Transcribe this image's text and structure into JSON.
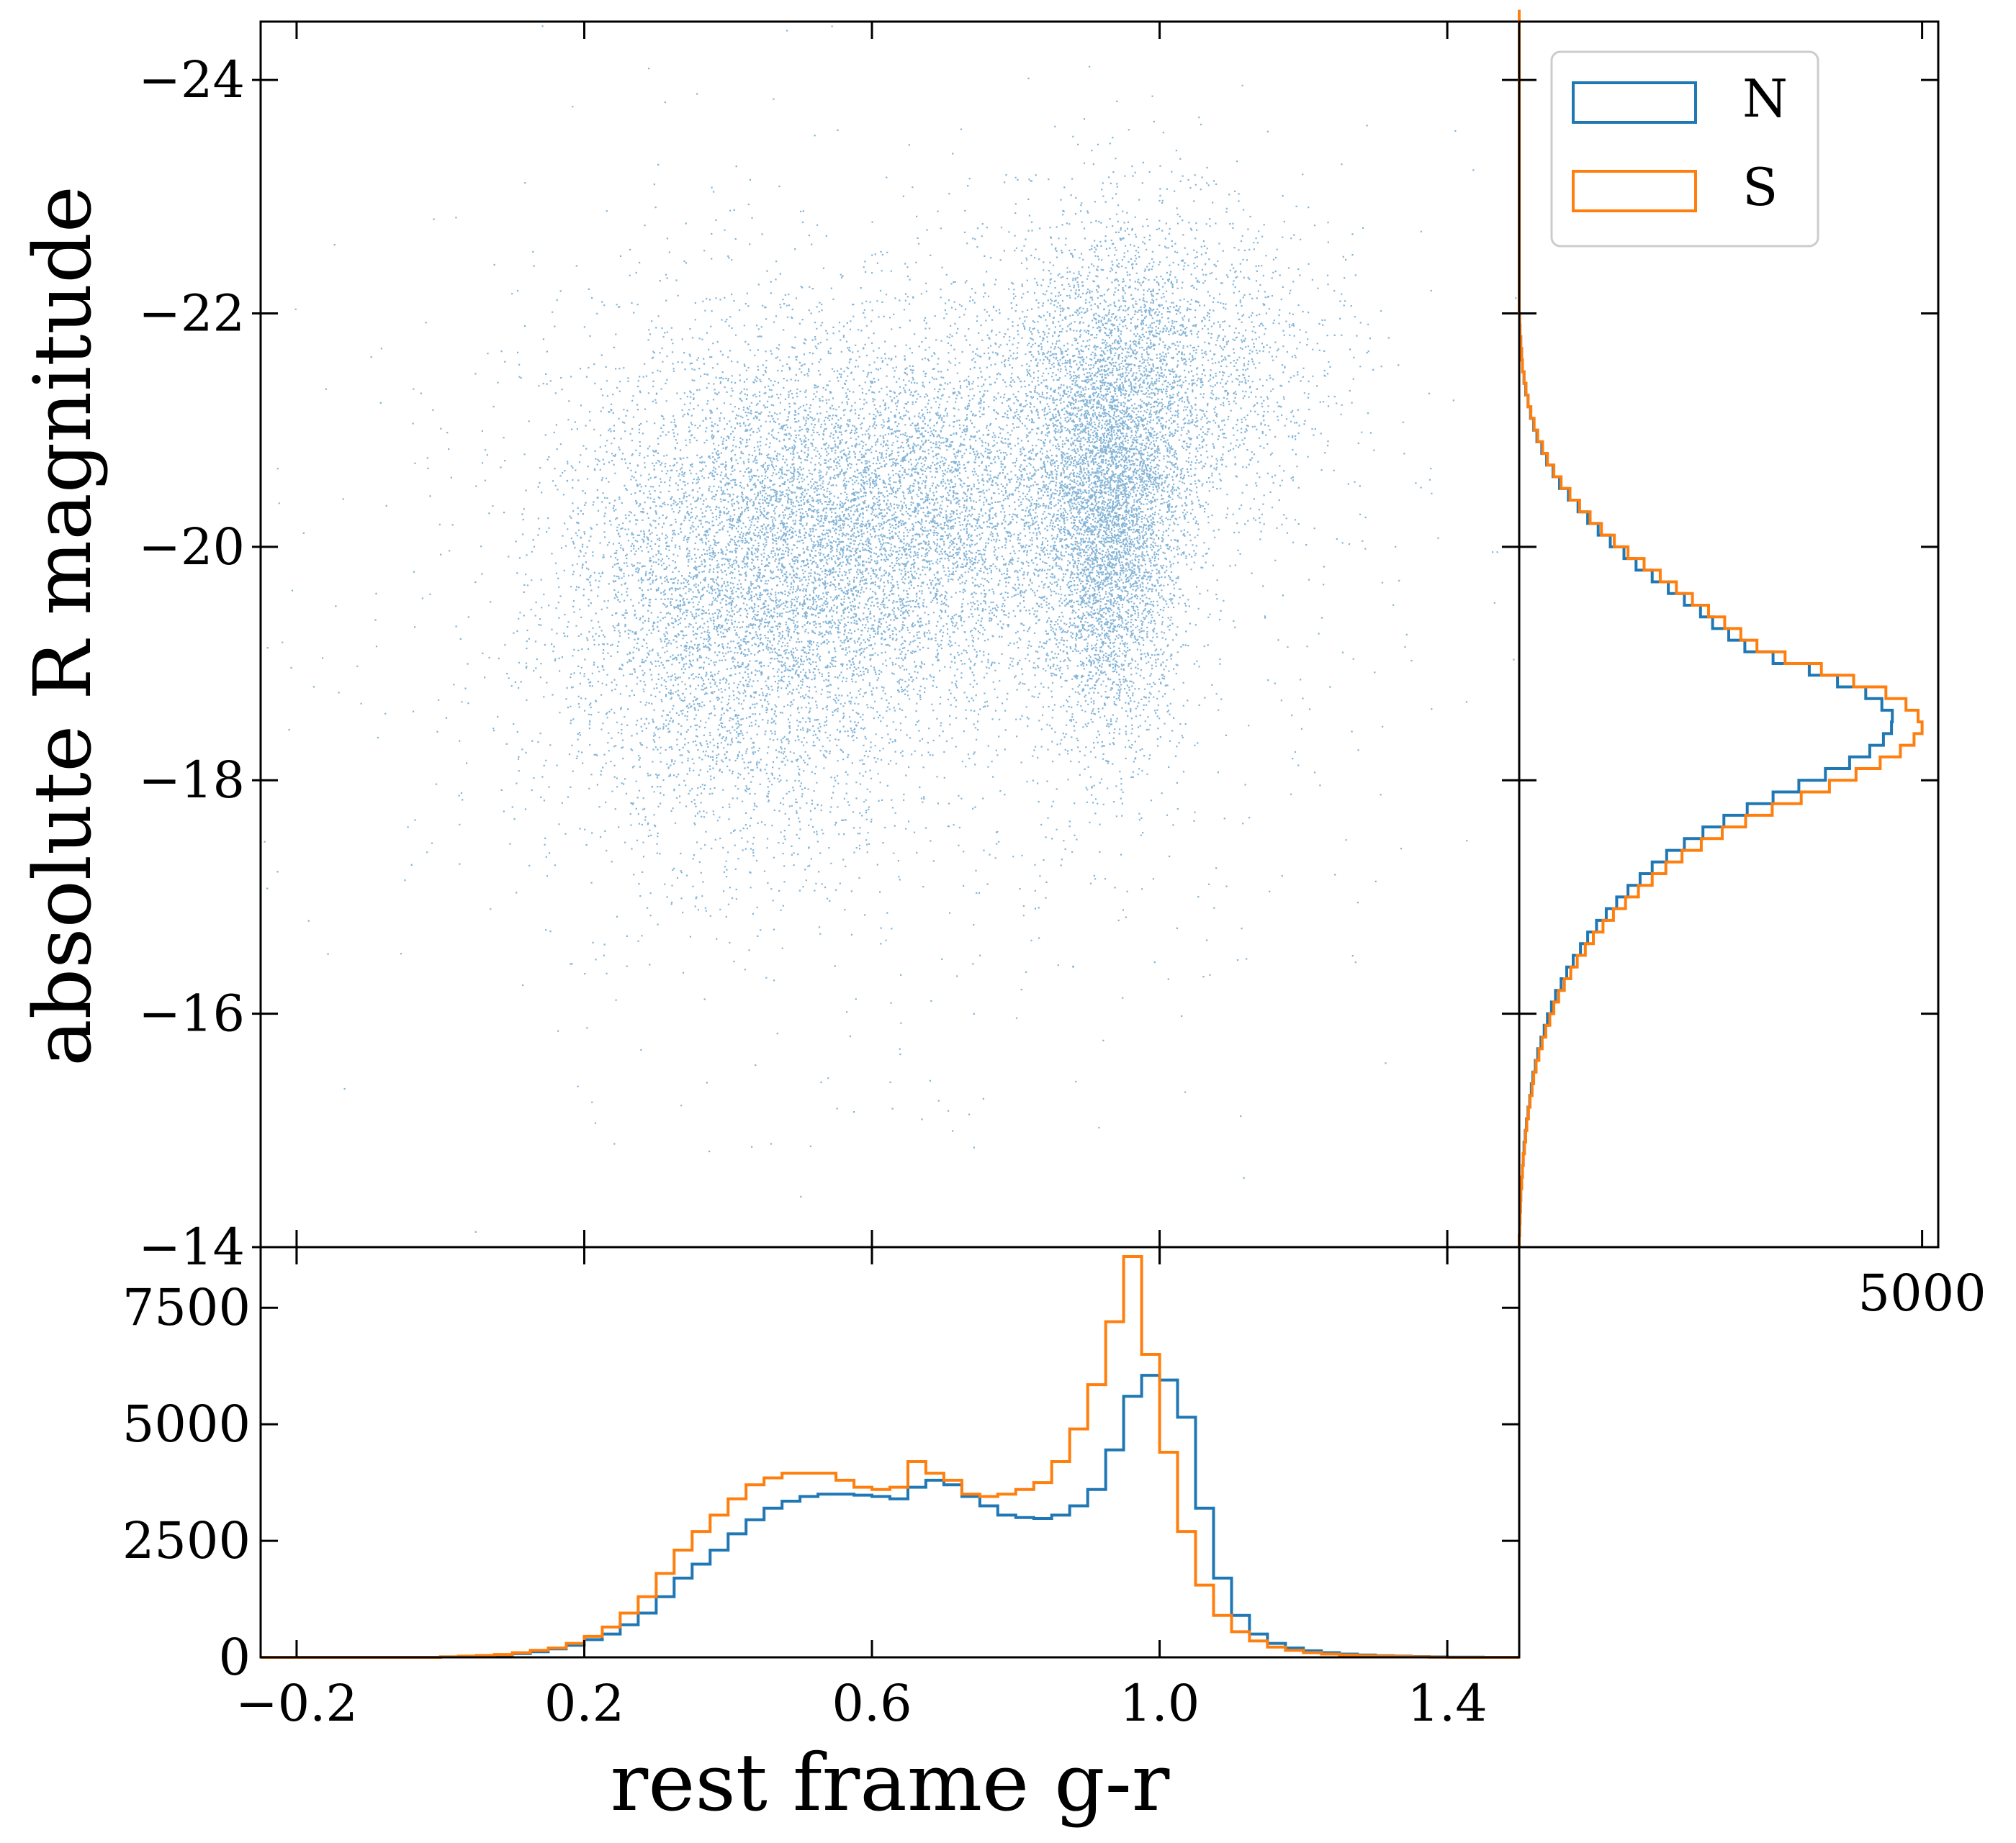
{
  "colors": {
    "N": "#1f77b4",
    "S": "#ff7f0e",
    "axes": "#000000",
    "background": "#ffffff"
  },
  "labels": {
    "xlabel": "rest frame g-r",
    "ylabel": "absolute R magnitude"
  },
  "legend": {
    "placement": "top-right",
    "entries": [
      "N",
      "S"
    ]
  },
  "chart_data": [
    {
      "panel": "scatter",
      "type": "scatter",
      "title": "",
      "xlabel": "",
      "ylabel": "absolute R magnitude",
      "xlim": [
        -0.25,
        1.5
      ],
      "ylim": [
        -14,
        -24.5
      ],
      "y_inverted": true,
      "x_ticks": [
        -0.2,
        0.2,
        0.6,
        1.0,
        1.4
      ],
      "y_ticks": [
        "−24",
        "−22",
        "−20",
        "−18",
        "−16",
        "−14"
      ],
      "y_tick_values": [
        -24,
        -22,
        -20,
        -18,
        -16,
        -14
      ],
      "point_color": "#1f77b4",
      "density_components": [
        {
          "x_mean": 0.93,
          "y_mean": -20.3,
          "x_sd": 0.05,
          "y_sd": 0.95,
          "weight": 0.22
        },
        {
          "x_mean": 0.65,
          "y_mean": -20.3,
          "x_sd": 0.15,
          "y_sd": 0.75,
          "weight": 0.25
        },
        {
          "x_mean": 0.42,
          "y_mean": -19.6,
          "x_sd": 0.13,
          "y_sd": 1.05,
          "weight": 0.33
        },
        {
          "x_mean": 0.98,
          "y_mean": -21.5,
          "x_sd": 0.12,
          "y_sd": 0.7,
          "weight": 0.13
        },
        {
          "x_mean": 0.6,
          "y_mean": -19.5,
          "x_sd": 0.35,
          "y_sd": 1.8,
          "weight": 0.07
        }
      ]
    },
    {
      "panel": "bottom-histogram",
      "type": "line",
      "xlabel": "rest frame g-r",
      "ylabel": "",
      "xlim": [
        -0.25,
        1.5
      ],
      "ylim": [
        0,
        8800
      ],
      "x_ticks": [
        "−0.2",
        "0.2",
        "0.6",
        "1.0",
        "1.4"
      ],
      "x_tick_values": [
        -0.2,
        0.2,
        0.6,
        1.0,
        1.4
      ],
      "y_ticks": [
        "0",
        "2500",
        "5000",
        "7500"
      ],
      "y_tick_values": [
        0,
        2500,
        5000,
        7500
      ],
      "bin_edges_start": -0.25,
      "bin_width": 0.025,
      "series": [
        {
          "name": "N",
          "color": "#1f77b4",
          "values": [
            0,
            0,
            0,
            0,
            0,
            0,
            0,
            0,
            0,
            0,
            10,
            20,
            30,
            50,
            80,
            120,
            180,
            260,
            380,
            500,
            700,
            950,
            1300,
            1700,
            2000,
            2300,
            2650,
            2950,
            3200,
            3350,
            3450,
            3500,
            3500,
            3480,
            3450,
            3400,
            3650,
            3800,
            3700,
            3450,
            3250,
            3050,
            3000,
            2980,
            3050,
            3250,
            3600,
            4450,
            5600,
            6050,
            5950,
            5150,
            3200,
            1700,
            900,
            500,
            300,
            200,
            140,
            100,
            70,
            50,
            35,
            25,
            15,
            10,
            5,
            5,
            0,
            0
          ]
        },
        {
          "name": "S",
          "color": "#ff7f0e",
          "values": [
            0,
            0,
            0,
            0,
            0,
            0,
            0,
            0,
            0,
            0,
            10,
            25,
            40,
            60,
            100,
            150,
            200,
            300,
            450,
            650,
            950,
            1300,
            1800,
            2300,
            2700,
            3050,
            3400,
            3700,
            3850,
            3950,
            3950,
            3950,
            3800,
            3650,
            3600,
            3650,
            4200,
            3950,
            3800,
            3500,
            3450,
            3500,
            3600,
            3750,
            4200,
            4900,
            5850,
            7200,
            8600,
            6500,
            4400,
            2700,
            1550,
            900,
            550,
            350,
            220,
            150,
            100,
            70,
            50,
            35,
            25,
            15,
            10,
            5,
            0,
            0,
            0,
            0
          ]
        }
      ]
    },
    {
      "panel": "right-histogram",
      "type": "line",
      "orientation": "horizontal",
      "xlim": [
        0,
        5200
      ],
      "ylim": [
        -14,
        -24.5
      ],
      "x_ticks": [
        "5000"
      ],
      "x_tick_values": [
        5000
      ],
      "bin_edges_start": -14,
      "bin_width": 0.1,
      "series": [
        {
          "name": "N",
          "color": "#1f77b4",
          "values": [
            0,
            5,
            10,
            15,
            20,
            30,
            40,
            50,
            60,
            75,
            90,
            110,
            130,
            150,
            170,
            200,
            230,
            270,
            310,
            350,
            400,
            450,
            520,
            590,
            670,
            760,
            850,
            960,
            1080,
            1210,
            1350,
            1500,
            1650,
            1830,
            2050,
            2280,
            2540,
            2830,
            3150,
            3470,
            3800,
            4100,
            4350,
            4520,
            4620,
            4630,
            4500,
            4300,
            3950,
            3600,
            3150,
            2800,
            2600,
            2400,
            2250,
            2050,
            1850,
            1650,
            1450,
            1300,
            1130,
            980,
            850,
            730,
            610,
            500,
            420,
            340,
            280,
            220,
            180,
            140,
            110,
            80,
            60,
            40,
            30,
            20,
            10,
            5,
            0,
            0,
            0,
            0,
            0,
            0,
            0,
            0,
            0,
            0,
            0,
            0,
            0,
            0,
            0,
            0,
            0,
            0,
            0,
            0,
            0,
            0,
            0,
            0,
            0,
            0
          ]
        },
        {
          "name": "S",
          "color": "#ff7f0e",
          "values": [
            0,
            5,
            10,
            15,
            20,
            30,
            40,
            50,
            65,
            80,
            95,
            115,
            135,
            160,
            180,
            210,
            245,
            285,
            330,
            380,
            430,
            490,
            560,
            640,
            720,
            820,
            920,
            1040,
            1170,
            1320,
            1480,
            1650,
            1820,
            2020,
            2260,
            2520,
            2810,
            3140,
            3500,
            3850,
            4180,
            4480,
            4730,
            4900,
            5000,
            4950,
            4800,
            4550,
            4150,
            3750,
            3300,
            2950,
            2750,
            2550,
            2350,
            2150,
            1950,
            1750,
            1550,
            1350,
            1180,
            1020,
            880,
            750,
            630,
            520,
            430,
            350,
            290,
            230,
            185,
            145,
            110,
            85,
            60,
            40,
            30,
            20,
            10,
            5,
            0,
            0,
            0,
            0,
            0,
            0,
            0,
            0,
            0,
            0,
            0,
            0,
            0,
            0,
            0,
            0,
            0,
            0,
            0,
            0,
            0,
            0,
            0,
            0,
            0,
            0
          ]
        }
      ]
    }
  ]
}
